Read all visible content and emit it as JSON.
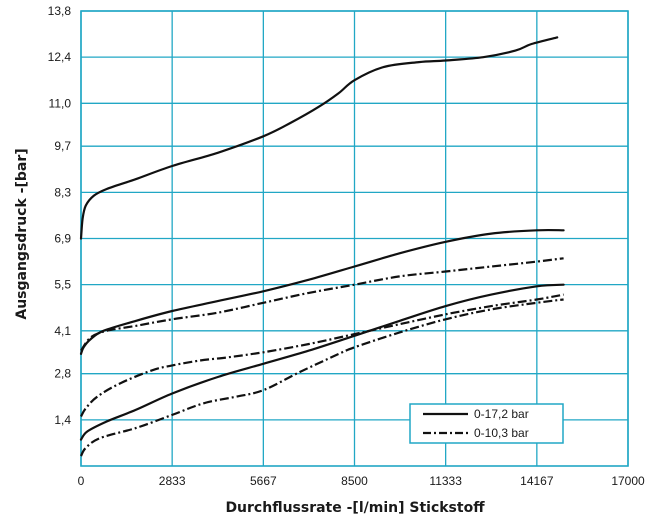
{
  "chart_data": {
    "type": "line",
    "xlabel": "Durchflussrate -[l/min] Stickstoff",
    "ylabel": "Ausgangsdruck -[bar]",
    "xlim": [
      0,
      17000
    ],
    "ylim": [
      0,
      13.8
    ],
    "x_ticks": [
      "0",
      "2833",
      "5667",
      "8500",
      "11333",
      "14167",
      "17000"
    ],
    "y_ticks": [
      "1,4",
      "2,8",
      "4,1",
      "5,5",
      "6,9",
      "8,3",
      "9,7",
      "11,0",
      "12,4",
      "13,8"
    ],
    "grid": true,
    "grid_color": "#21a7c5",
    "line_color": "#111111",
    "legend_position": "bottom-right",
    "legend": [
      {
        "label": "0-17,2 bar",
        "style": "solid"
      },
      {
        "label": "0-10,3 bar",
        "style": "dash-dot"
      }
    ],
    "series": [
      {
        "group": "0-17,2 bar",
        "style": "solid",
        "points": [
          [
            0,
            6.9
          ],
          [
            50,
            7.5
          ],
          [
            150,
            7.9
          ],
          [
            400,
            8.2
          ],
          [
            800,
            8.4
          ],
          [
            1700,
            8.7
          ],
          [
            2833,
            9.1
          ],
          [
            4250,
            9.5
          ],
          [
            5667,
            10.0
          ],
          [
            6500,
            10.4
          ],
          [
            7400,
            10.9
          ],
          [
            8000,
            11.3
          ],
          [
            8500,
            11.7
          ],
          [
            9400,
            12.1
          ],
          [
            10500,
            12.25
          ],
          [
            11333,
            12.3
          ],
          [
            12500,
            12.4
          ],
          [
            13500,
            12.6
          ],
          [
            14000,
            12.8
          ],
          [
            14800,
            13.0
          ]
        ]
      },
      {
        "group": "0-17,2 bar",
        "style": "solid",
        "points": [
          [
            0,
            3.4
          ],
          [
            80,
            3.6
          ],
          [
            300,
            3.85
          ],
          [
            700,
            4.1
          ],
          [
            1700,
            4.4
          ],
          [
            2833,
            4.7
          ],
          [
            4250,
            5.0
          ],
          [
            5667,
            5.3
          ],
          [
            7083,
            5.65
          ],
          [
            8500,
            6.05
          ],
          [
            9900,
            6.45
          ],
          [
            11333,
            6.8
          ],
          [
            12750,
            7.05
          ],
          [
            14167,
            7.15
          ],
          [
            15000,
            7.15
          ]
        ]
      },
      {
        "group": "0-10,3 bar",
        "style": "dash-dot",
        "points": [
          [
            0,
            3.5
          ],
          [
            300,
            3.9
          ],
          [
            800,
            4.1
          ],
          [
            1700,
            4.25
          ],
          [
            2833,
            4.45
          ],
          [
            4250,
            4.65
          ],
          [
            5667,
            4.95
          ],
          [
            7083,
            5.25
          ],
          [
            8500,
            5.5
          ],
          [
            9900,
            5.75
          ],
          [
            11333,
            5.9
          ],
          [
            12750,
            6.05
          ],
          [
            14167,
            6.2
          ],
          [
            15000,
            6.3
          ]
        ]
      },
      {
        "group": "0-17,2 bar",
        "style": "solid",
        "points": [
          [
            0,
            0.8
          ],
          [
            200,
            1.05
          ],
          [
            800,
            1.35
          ],
          [
            1700,
            1.7
          ],
          [
            2833,
            2.2
          ],
          [
            4250,
            2.7
          ],
          [
            5667,
            3.1
          ],
          [
            7083,
            3.5
          ],
          [
            8500,
            3.95
          ],
          [
            9900,
            4.4
          ],
          [
            11333,
            4.85
          ],
          [
            12750,
            5.2
          ],
          [
            14167,
            5.45
          ],
          [
            15000,
            5.5
          ]
        ]
      },
      {
        "group": "0-10,3 bar",
        "style": "dash-dot",
        "points": [
          [
            0,
            1.5
          ],
          [
            150,
            1.75
          ],
          [
            500,
            2.1
          ],
          [
            1200,
            2.5
          ],
          [
            2200,
            2.9
          ],
          [
            2833,
            3.05
          ],
          [
            3700,
            3.2
          ],
          [
            4600,
            3.3
          ],
          [
            5667,
            3.45
          ],
          [
            7083,
            3.7
          ],
          [
            8500,
            4.0
          ],
          [
            9900,
            4.3
          ],
          [
            11333,
            4.6
          ],
          [
            12750,
            4.85
          ],
          [
            14167,
            5.05
          ],
          [
            15000,
            5.2
          ]
        ]
      },
      {
        "group": "0-10,3 bar",
        "style": "dash-dot",
        "points": [
          [
            0,
            0.3
          ],
          [
            150,
            0.55
          ],
          [
            600,
            0.85
          ],
          [
            1700,
            1.15
          ],
          [
            2833,
            1.55
          ],
          [
            3800,
            1.9
          ],
          [
            4800,
            2.1
          ],
          [
            5667,
            2.3
          ],
          [
            6800,
            2.85
          ],
          [
            7900,
            3.35
          ],
          [
            8500,
            3.6
          ],
          [
            9900,
            4.05
          ],
          [
            11333,
            4.45
          ],
          [
            12750,
            4.75
          ],
          [
            14167,
            4.95
          ],
          [
            15000,
            5.05
          ]
        ]
      }
    ]
  }
}
